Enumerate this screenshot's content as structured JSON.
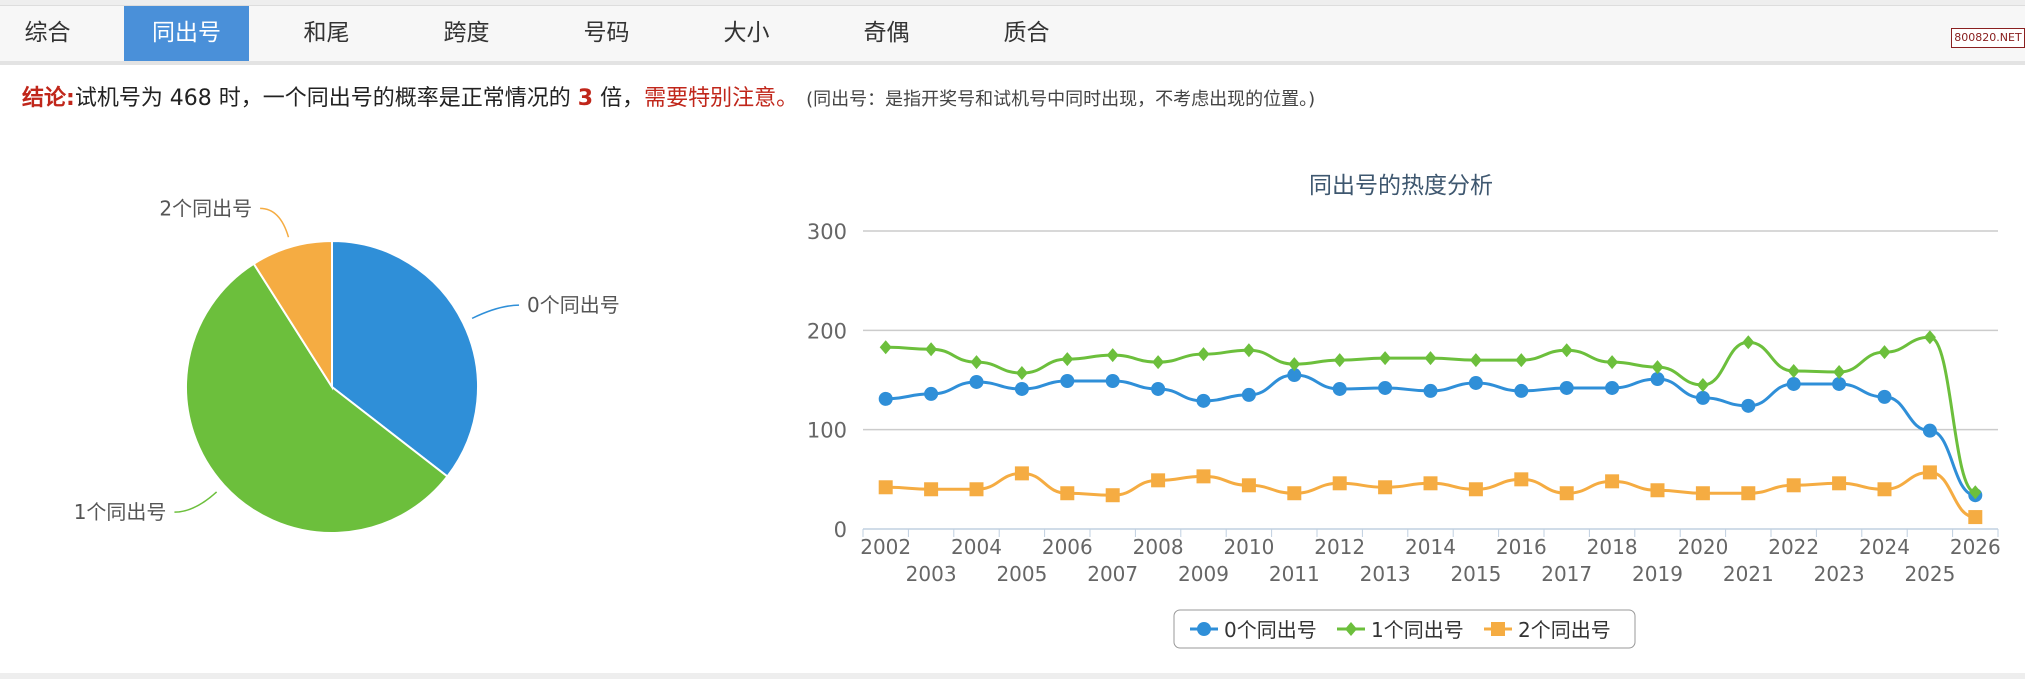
{
  "tabs": [
    "综合",
    "同出号",
    "和尾",
    "跨度",
    "号码",
    "大小",
    "奇偶",
    "质合"
  ],
  "active_tab": 1,
  "watermark": "800820.NET",
  "conclusion": {
    "label": "结论:",
    "text1": "试机号为 468 时，一个同出号的概率是正常情况的 ",
    "multiple": "3",
    "text2": " 倍，",
    "warning": "需要特别注意。",
    "note": "(同出号：是指开奖号和试机号中同时出现，不考虑出现的位置。)"
  },
  "colors": {
    "s0": "#2f8fd8",
    "s1": "#6cbf3c",
    "s2": "#f5ac42",
    "active_tab": "#4a90d9"
  },
  "chart_data": [
    {
      "type": "pie",
      "labels": [
        "0个同出号",
        "1个同出号",
        "2个同出号"
      ],
      "values": [
        35.5,
        55.5,
        9.0
      ]
    },
    {
      "type": "line",
      "title": "同出号的热度分析",
      "categories": [
        "2002",
        "2003",
        "2004",
        "2005",
        "2006",
        "2007",
        "2008",
        "2009",
        "2010",
        "2011",
        "2012",
        "2013",
        "2014",
        "2015",
        "2016",
        "2017",
        "2018",
        "2019",
        "2020",
        "2021",
        "2022",
        "2023",
        "2024",
        "2025",
        "2026"
      ],
      "ylim": [
        0,
        300
      ],
      "yticks": [
        "0",
        "100",
        "200",
        "300"
      ],
      "grid": true,
      "legend_position": "bottom",
      "series": [
        {
          "name": "0个同出号",
          "marker": "circle",
          "values": [
            131,
            136,
            148,
            141,
            149,
            149,
            141,
            129,
            135,
            155,
            141,
            142,
            139,
            147,
            139,
            142,
            142,
            151,
            132,
            124,
            146,
            146,
            133,
            99,
            34
          ]
        },
        {
          "name": "1个同出号",
          "marker": "diamond",
          "values": [
            183,
            181,
            168,
            157,
            171,
            175,
            168,
            176,
            180,
            166,
            170,
            172,
            172,
            170,
            170,
            180,
            168,
            163,
            145,
            188,
            159,
            158,
            178,
            193,
            37
          ]
        },
        {
          "name": "2个同出号",
          "marker": "square",
          "values": [
            42,
            40,
            40,
            56,
            36,
            34,
            49,
            53,
            44,
            36,
            46,
            42,
            46,
            40,
            50,
            36,
            48,
            39,
            36,
            36,
            44,
            46,
            40,
            57,
            12
          ]
        }
      ]
    }
  ]
}
